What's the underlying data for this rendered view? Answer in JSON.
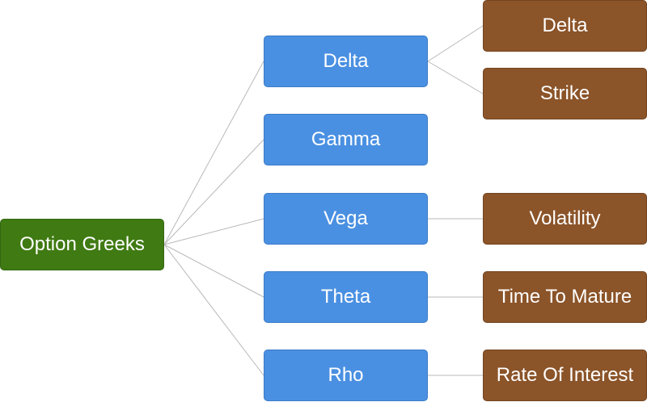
{
  "root": {
    "label": "Option Greeks"
  },
  "greeks": [
    {
      "label": "Delta",
      "children": [
        "Delta",
        "Strike"
      ]
    },
    {
      "label": "Gamma",
      "children": []
    },
    {
      "label": "Vega",
      "children": [
        "Volatility"
      ]
    },
    {
      "label": "Theta",
      "children": [
        "Time To Mature"
      ]
    },
    {
      "label": "Rho",
      "children": [
        "Rate Of Interest"
      ]
    }
  ],
  "colors": {
    "root": "#3f7a12",
    "branch": "#4a90e2",
    "leaf": "#8b5429",
    "connector": "#b8b8b8"
  }
}
